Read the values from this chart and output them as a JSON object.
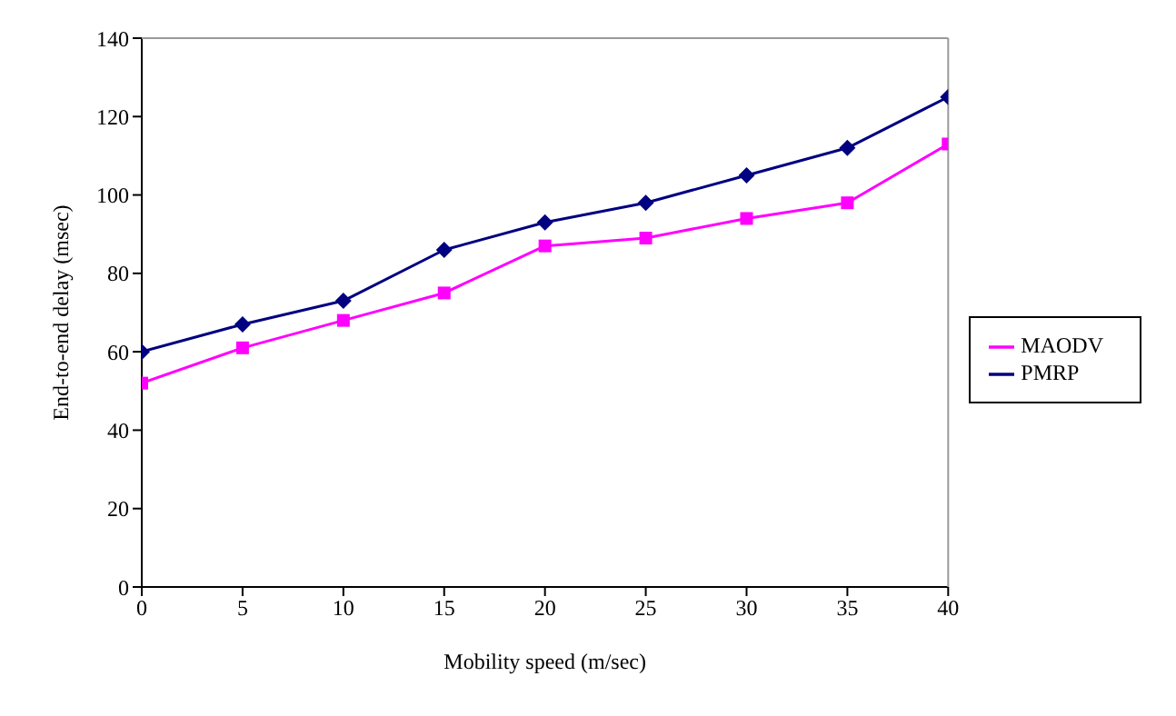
{
  "chart_data": {
    "type": "line",
    "xlabel": "Mobility speed (m/sec)",
    "ylabel": "End-to-end delay (msec)",
    "x": [
      0,
      5,
      10,
      15,
      20,
      25,
      30,
      35,
      40
    ],
    "series": [
      {
        "name": "PMRP",
        "color": "#000080",
        "marker": "diamond",
        "values": [
          60,
          67,
          73,
          86,
          93,
          98,
          105,
          112,
          125
        ]
      },
      {
        "name": "MAODV",
        "color": "#ff00ff",
        "marker": "square",
        "values": [
          52,
          61,
          68,
          75,
          87,
          89,
          94,
          98,
          113
        ]
      }
    ],
    "xlim": [
      0,
      40
    ],
    "xticks": [
      0,
      5,
      10,
      15,
      20,
      25,
      30,
      35,
      40
    ],
    "ylim": [
      0,
      140
    ],
    "yticks": [
      0,
      20,
      40,
      60,
      80,
      100,
      120,
      140
    ],
    "grid": false,
    "legend": "right"
  }
}
